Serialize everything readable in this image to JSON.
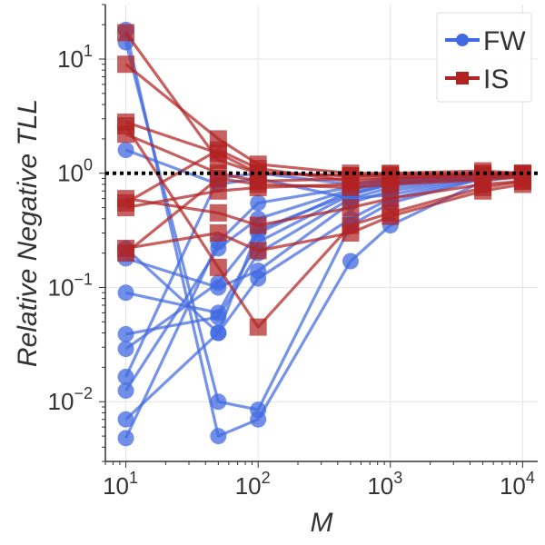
{
  "chart_data": {
    "type": "line",
    "xscale": "log",
    "yscale": "log",
    "xlabel": "M",
    "ylabel": "Relative Negative TLL",
    "xlim": [
      7,
      13000
    ],
    "ylim": [
      0.003,
      30
    ],
    "x_ticks": [
      {
        "value": 10,
        "base": "10",
        "exp": "1"
      },
      {
        "value": 100,
        "base": "10",
        "exp": "2"
      },
      {
        "value": 1000,
        "base": "10",
        "exp": "3"
      },
      {
        "value": 10000,
        "base": "10",
        "exp": "4"
      }
    ],
    "y_ticks": [
      {
        "value": 0.01,
        "base": "10",
        "exp": "−2",
        "plain": ""
      },
      {
        "value": 0.1,
        "base": "10",
        "exp": "−1",
        "plain": ""
      },
      {
        "value": 1,
        "base": "",
        "exp": "",
        "plain": "10⁰"
      },
      {
        "value": 10,
        "base": "10",
        "exp": "1",
        "plain": ""
      }
    ],
    "y_tick_display": [
      "10",
      "10",
      "10",
      "10"
    ],
    "reference_line": {
      "y": 1,
      "style": "dotted",
      "color": "#000000"
    },
    "legend": {
      "position": "top-right",
      "entries": [
        {
          "label": "FW",
          "color": "#4169e1",
          "marker": "circle"
        },
        {
          "label": "IS",
          "color": "#b22222",
          "marker": "square"
        }
      ]
    },
    "x": [
      10,
      50,
      100,
      500,
      1000,
      5000,
      10000
    ],
    "series": [
      {
        "name": "FW",
        "color": "#4169e1",
        "marker": "circle",
        "lines": [
          [
            18,
            0.005,
            0.007,
            0.17,
            0.35,
            0.85,
            0.95
          ],
          [
            14,
            0.01,
            0.0085,
            0.35,
            0.55,
            0.9,
            0.97
          ],
          [
            1.6,
            0.8,
            0.9,
            0.6,
            0.65,
            0.92,
            0.97
          ],
          [
            0.22,
            0.04,
            0.12,
            0.4,
            0.6,
            0.9,
            0.96
          ],
          [
            0.18,
            0.1,
            0.14,
            0.55,
            0.7,
            0.93,
            0.98
          ],
          [
            0.09,
            0.06,
            0.25,
            0.65,
            0.8,
            0.95,
            0.98
          ],
          [
            0.039,
            0.055,
            0.2,
            0.6,
            0.75,
            0.94,
            0.98
          ],
          [
            0.029,
            0.11,
            0.3,
            0.7,
            0.82,
            0.95,
            0.99
          ],
          [
            0.0165,
            0.9,
            1.0,
            0.8,
            0.9,
            0.97,
            0.99
          ],
          [
            0.0125,
            0.22,
            0.4,
            0.72,
            0.85,
            0.96,
            0.99
          ],
          [
            0.007,
            0.04,
            0.32,
            0.66,
            0.8,
            0.95,
            0.98
          ],
          [
            0.0048,
            0.25,
            0.55,
            0.75,
            0.88,
            0.96,
            0.99
          ]
        ]
      },
      {
        "name": "IS",
        "color": "#b22222",
        "marker": "square",
        "lines": [
          [
            17,
            1.3,
            1.0,
            0.95,
            0.98,
            0.98,
            0.99
          ],
          [
            9,
            2.0,
            1.2,
            1.0,
            1.0,
            1.05,
            1.0
          ],
          [
            2.8,
            1.5,
            1.0,
            0.95,
            0.95,
            1.0,
            1.0
          ],
          [
            2.6,
            0.15,
            0.045,
            0.35,
            0.45,
            0.75,
            0.85
          ],
          [
            2.2,
            1.0,
            0.85,
            0.9,
            0.92,
            0.95,
            0.98
          ],
          [
            0.6,
            0.45,
            0.35,
            0.5,
            0.6,
            0.8,
            0.85
          ],
          [
            0.55,
            1.6,
            1.1,
            0.85,
            0.9,
            0.95,
            0.97
          ],
          [
            0.5,
            0.7,
            0.75,
            0.8,
            0.85,
            0.9,
            0.95
          ],
          [
            0.22,
            0.3,
            0.21,
            0.3,
            0.42,
            0.7,
            0.8
          ],
          [
            0.2,
            0.9,
            0.8,
            0.75,
            0.8,
            0.88,
            0.92
          ]
        ]
      }
    ]
  }
}
